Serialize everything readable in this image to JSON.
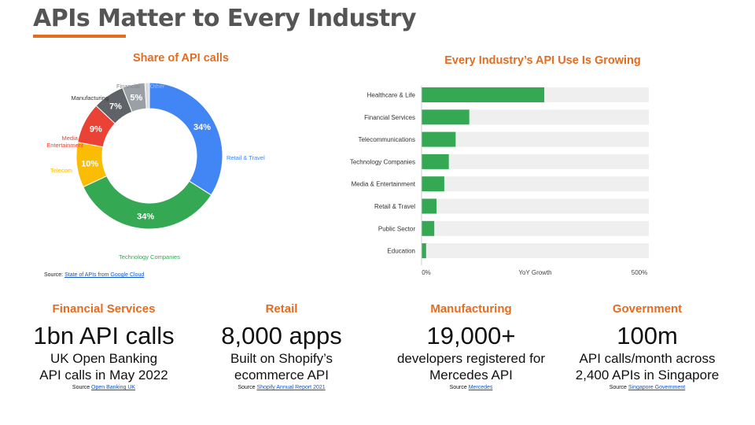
{
  "title": "APIs Matter to Every Industry",
  "colors": {
    "accent": "#e36c21",
    "bar": "#34a853",
    "track": "#efefef"
  },
  "chart_data": [
    {
      "type": "pie",
      "title": "Share of API calls",
      "slices": [
        {
          "label": "Retail & Travel",
          "value": 34,
          "display": "34%",
          "color": "#4285f4"
        },
        {
          "label": "Technology Companies",
          "value": 34,
          "display": "34%",
          "color": "#34a853"
        },
        {
          "label": "Telecom",
          "value": 10,
          "display": "10%",
          "color": "#fbbc04"
        },
        {
          "label": "Media & Entertainment",
          "value": 9,
          "display": "9%",
          "color": "#ea4335"
        },
        {
          "label": "Manufacturing",
          "value": 7,
          "display": "7%",
          "color": "#5f6368"
        },
        {
          "label": "Financial",
          "value": 5,
          "display": "5%",
          "color": "#9aa0a6"
        },
        {
          "label": "Other",
          "value": 1,
          "display": "",
          "color": "#dadce0"
        }
      ],
      "source": {
        "prefix": "Source: ",
        "link": "State of APIs from Google Cloud"
      }
    },
    {
      "type": "bar",
      "orientation": "horizontal",
      "title": "Every Industry’s API Use Is Growing",
      "categories": [
        "Healthcare & Life",
        "Financial Services",
        "Telecommunications",
        "Technology Companies",
        "Media & Entertainment",
        "Retail & Travel",
        "Public Sector",
        "Education"
      ],
      "values": [
        270,
        105,
        75,
        60,
        50,
        33,
        28,
        10
      ],
      "xlim": [
        0,
        500
      ],
      "xticks": [
        "0%",
        "YoY Growth",
        "500%"
      ]
    }
  ],
  "stats": [
    {
      "category": "Financial Services",
      "big": "1bn API calls",
      "line1": "UK Open Banking",
      "line2": "API calls in May 2022",
      "source_prefix": "Source ",
      "source_link": "Open Banking UK"
    },
    {
      "category": "Retail",
      "big": "8,000 apps",
      "line1": "Built on Shopify’s",
      "line2": "ecommerce API",
      "source_prefix": "Source ",
      "source_link": "Shopify Annual Report 2021"
    },
    {
      "category": "Manufacturing",
      "big": "19,000+",
      "line1": "developers registered for",
      "line2": "Mercedes API",
      "source_prefix": "Source ",
      "source_link": "Mercedes"
    },
    {
      "category": "Government",
      "big": "100m",
      "line1": "API calls/month across",
      "line2": "2,400 APIs in Singapore",
      "source_prefix": "Source ",
      "source_link": "Singapore Government"
    }
  ]
}
